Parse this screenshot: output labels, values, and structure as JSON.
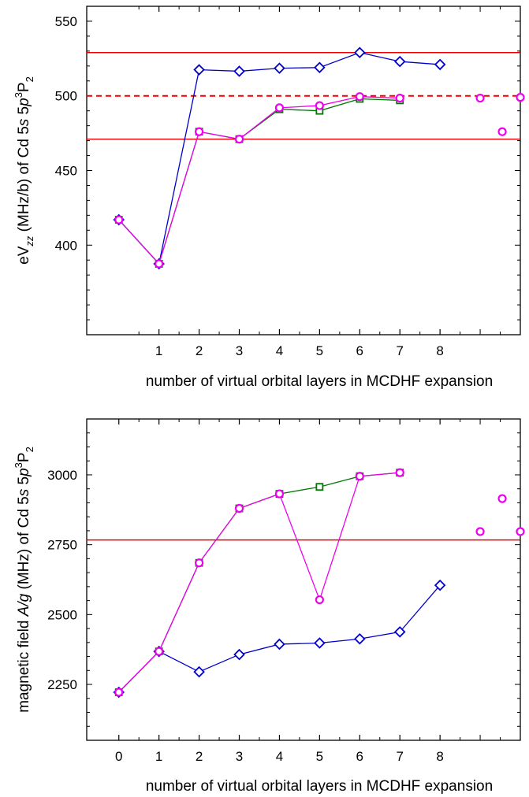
{
  "colors": {
    "blue": "#0000cc",
    "green": "#007700",
    "magenta": "#ee00ee",
    "red": "#ee0000",
    "axis": "#000000"
  },
  "chart_data": [
    {
      "type": "line",
      "xlabel": "number of virtual orbital layers in MCDHF expansion",
      "ylabel_parts": {
        "prefix": "eV",
        "sub": "zz",
        "middle": " (MHz/b) of Cd 5",
        "s": "s",
        "space": " 5",
        "p": "p",
        "sup3": "3",
        "P": "P",
        "sub2": "2"
      },
      "xlim": [
        -0.8,
        10
      ],
      "ylim": [
        340,
        560
      ],
      "xticks": [
        1,
        2,
        3,
        4,
        5,
        6,
        7,
        8
      ],
      "xtick_labels": [
        "1",
        "2",
        "3",
        "4",
        "5",
        "6",
        "7",
        "8"
      ],
      "yticks": [
        400,
        450,
        500,
        550
      ],
      "ytick_labels": [
        "400",
        "450",
        "500",
        "550"
      ],
      "grid": false,
      "series": [
        {
          "color_key": "blue",
          "marker": "diamond",
          "x": [
            0,
            1,
            2,
            3,
            4,
            5,
            6,
            7,
            8
          ],
          "y": [
            417,
            387.5,
            517.5,
            516.5,
            518.5,
            519,
            529,
            523,
            521
          ]
        },
        {
          "color_key": "green",
          "marker": "square",
          "x": [
            0,
            1,
            2,
            3,
            4,
            5,
            6,
            7
          ],
          "y": [
            417,
            387.5,
            476,
            471,
            491,
            490,
            498,
            497
          ]
        },
        {
          "color_key": "magenta",
          "marker": "circle",
          "x": [
            0,
            1,
            2,
            3,
            4,
            5,
            6,
            7
          ],
          "y": [
            417,
            387.5,
            476,
            471,
            492,
            493.5,
            499.5,
            498.5
          ]
        },
        {
          "color_key": "magenta",
          "marker": "circle",
          "line": false,
          "x": [
            9,
            9.55,
            10
          ],
          "y": [
            498.5,
            476,
            499
          ]
        }
      ],
      "hlines": [
        {
          "y": 529,
          "style": "solid",
          "color_key": "red"
        },
        {
          "y": 500,
          "style": "dashed",
          "color_key": "red"
        },
        {
          "y": 471,
          "style": "solid",
          "color_key": "red"
        }
      ]
    },
    {
      "type": "line",
      "xlabel": "number of virtual orbital layers in MCDHF expansion",
      "ylabel_parts": {
        "prefix": "magnetic field ",
        "Ag": "A/g",
        "middle": " (MHz) of Cd 5",
        "s": "s",
        "space": " 5",
        "p": "p",
        "sup3": "3",
        "P": "P",
        "sub2": "2"
      },
      "xlim": [
        -0.8,
        10
      ],
      "ylim": [
        2050,
        3200
      ],
      "xticks": [
        0,
        1,
        2,
        3,
        4,
        5,
        6,
        7,
        8
      ],
      "xtick_labels": [
        "0",
        "1",
        "2",
        "3",
        "4",
        "5",
        "6",
        "7",
        "8"
      ],
      "yticks": [
        2250,
        2500,
        2750,
        3000
      ],
      "ytick_labels": [
        "2250",
        "2500",
        "2750",
        "3000"
      ],
      "grid": false,
      "series": [
        {
          "color_key": "blue",
          "marker": "diamond",
          "x": [
            0,
            1,
            2,
            3,
            4,
            5,
            6,
            7,
            8
          ],
          "y": [
            2222,
            2368,
            2295,
            2357,
            2394,
            2398,
            2413,
            2438,
            2605
          ]
        },
        {
          "color_key": "green",
          "marker": "square",
          "x": [
            0,
            1,
            2,
            3,
            4,
            5,
            6,
            7
          ],
          "y": [
            2222,
            2368,
            2685,
            2880,
            2932,
            2957,
            2995,
            3008
          ]
        },
        {
          "color_key": "magenta",
          "marker": "circle",
          "x": [
            0,
            1,
            2,
            3,
            4,
            5,
            6,
            7
          ],
          "y": [
            2222,
            2368,
            2685,
            2880,
            2932,
            2553,
            2995,
            3008
          ]
        },
        {
          "color_key": "magenta",
          "marker": "circle",
          "line": false,
          "x": [
            9,
            9.55,
            10
          ],
          "y": [
            2797,
            2915,
            2797
          ]
        }
      ],
      "hlines": [
        {
          "y": 2767,
          "style": "solid",
          "color_key": "red"
        }
      ]
    }
  ]
}
